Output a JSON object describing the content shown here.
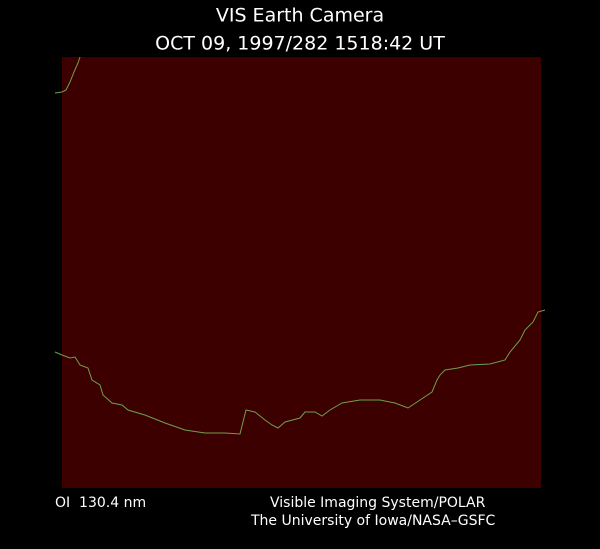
{
  "header": {
    "title": "VIS Earth Camera",
    "timestamp": "OCT 09, 1997/282 1518:42 UT"
  },
  "footer": {
    "filter": "OI  130.4 nm",
    "instrument": "Visible Imaging System/POLAR",
    "institution": "The University of Iowa/NASA–GSFC"
  }
}
